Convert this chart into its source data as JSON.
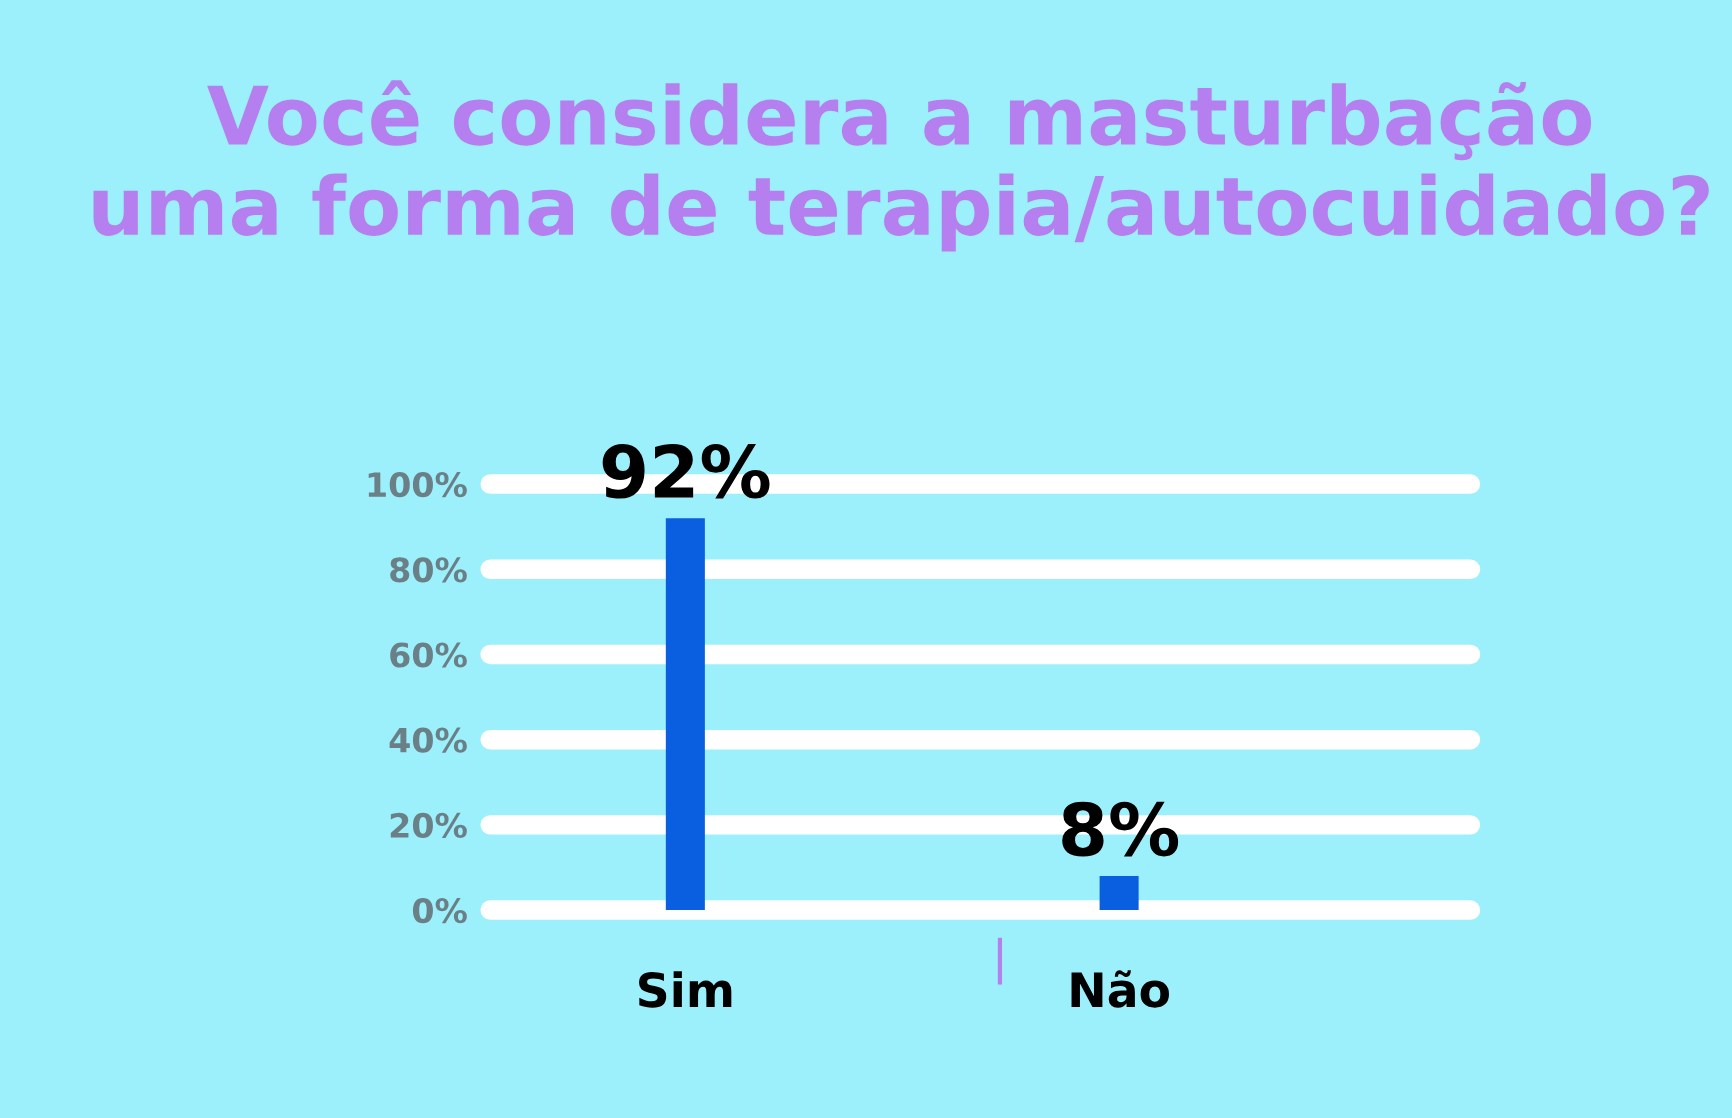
{
  "chart_data": {
    "type": "bar",
    "title": "Você considera a masturbação\numa forma de terapia/autocuidado?",
    "categories": [
      "Sim",
      "Não"
    ],
    "values": [
      92,
      8
    ],
    "value_labels": [
      "92%",
      "8%"
    ],
    "color": "#0a5fe0",
    "ylim": [
      0,
      100
    ],
    "yticks": [
      {
        "value": 0,
        "label": "0%"
      },
      {
        "value": 20,
        "label": "20%"
      },
      {
        "value": 40,
        "label": "40%"
      },
      {
        "value": 60,
        "label": "60%"
      },
      {
        "value": 80,
        "label": "80%"
      },
      {
        "value": 100,
        "label": "100%"
      }
    ],
    "grid": "y"
  }
}
